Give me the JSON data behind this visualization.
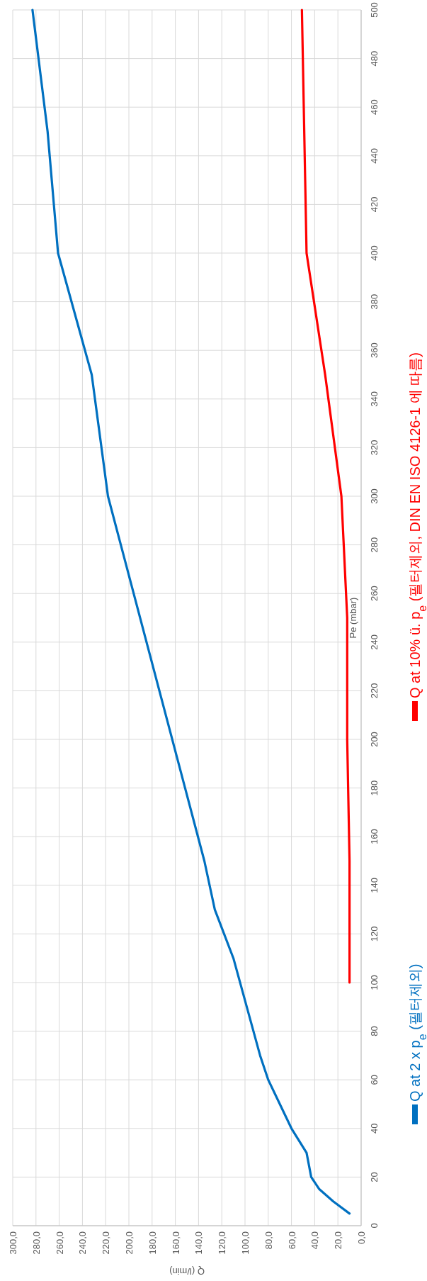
{
  "chart_data": {
    "type": "line",
    "xlabel": "Q (l/min)",
    "ylabel": "Pe (mbar)",
    "ylim": [
      0,
      500
    ],
    "yticks": [
      0,
      20,
      40,
      60,
      80,
      100,
      120,
      140,
      160,
      180,
      200,
      220,
      240,
      260,
      280,
      300,
      320,
      340,
      360,
      380,
      400,
      420,
      440,
      460,
      480,
      500
    ],
    "xlim": [
      300,
      0
    ],
    "xticks": [
      {
        "value": 0,
        "label": "0,0"
      },
      {
        "value": 20,
        "label": "20,0"
      },
      {
        "value": 40,
        "label": "40,0"
      },
      {
        "value": 60,
        "label": "60,0"
      },
      {
        "value": 80,
        "label": "80,0"
      },
      {
        "value": 100,
        "label": "100,0"
      },
      {
        "value": 120,
        "label": "120,0"
      },
      {
        "value": 140,
        "label": "140,0"
      },
      {
        "value": 160,
        "label": "160,0"
      },
      {
        "value": 180,
        "label": "180,0"
      },
      {
        "value": 200,
        "label": "200,0"
      },
      {
        "value": 220,
        "label": "220,0"
      },
      {
        "value": 240,
        "label": "240,0"
      },
      {
        "value": 260,
        "label": "260,0"
      },
      {
        "value": 280,
        "label": "280,0"
      },
      {
        "value": 300,
        "label": "300,0"
      }
    ],
    "grid": true,
    "legend": "right",
    "marker": "none",
    "line_style": "solid",
    "series": [
      {
        "name": "Q at 2 x p$_{e}$ (필터제외)",
        "color": "#0070c0",
        "x": [
          10,
          24,
          36,
          43,
          47,
          60,
          70,
          80,
          87,
          110,
          126,
          135,
          218,
          232,
          261,
          270,
          283
        ],
        "values": [
          5,
          10,
          15,
          20,
          30,
          40,
          50,
          60,
          70,
          110,
          130,
          150,
          300,
          350,
          400,
          450,
          500
        ]
      },
      {
        "name": "Q at 10% ü. p$_{e}$ (필터제외, DIN EN ISO 4126-1 에 따름)",
        "color": "#ff0000",
        "x": [
          10,
          10,
          12,
          12,
          17,
          31,
          47,
          49,
          51
        ],
        "values": [
          100,
          150,
          200,
          250,
          300,
          350,
          400,
          450,
          500
        ]
      }
    ]
  }
}
